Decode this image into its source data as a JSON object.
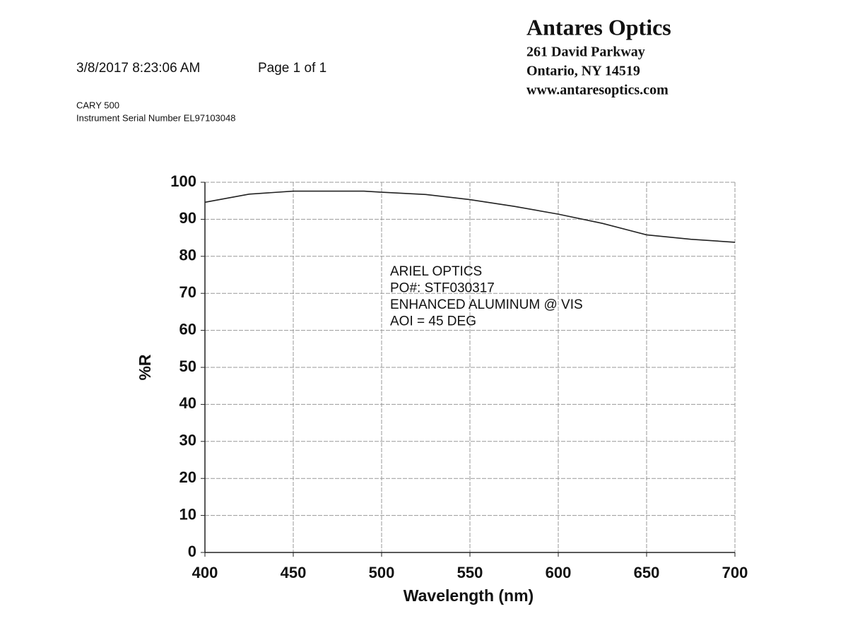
{
  "header": {
    "date": "3/8/2017 8:23:06 AM",
    "page": "Page 1 of 1",
    "instrument": "CARY 500",
    "serial": "Instrument Serial Number EL97103048",
    "company": "Antares Optics",
    "address1": "261 David Parkway",
    "address2": "Ontario, NY  14519",
    "website": "www.antaresoptics.com"
  },
  "chart_data": {
    "type": "line",
    "x_label": "Wavelength (nm)",
    "y_label": "%R",
    "annotation": [
      "ARIEL OPTICS",
      "PO#:  STF030317",
      "ENHANCED ALUMINUM @ VIS",
      "AOI = 45 DEG"
    ],
    "x": [
      400,
      425,
      450,
      475,
      490,
      500,
      525,
      550,
      575,
      600,
      625,
      650,
      675,
      700
    ],
    "values": [
      94.6,
      96.8,
      97.6,
      97.6,
      97.6,
      97.3,
      96.7,
      95.3,
      93.5,
      91.4,
      88.9,
      85.8,
      84.6,
      83.8
    ],
    "color": "#222222",
    "xlim": [
      400,
      700
    ],
    "xticks": [
      400,
      450,
      500,
      550,
      600,
      650,
      700
    ],
    "ylim": [
      0,
      100
    ],
    "yticks": [
      0,
      10,
      20,
      30,
      40,
      50,
      60,
      70,
      80,
      90,
      100
    ],
    "grid": true
  }
}
